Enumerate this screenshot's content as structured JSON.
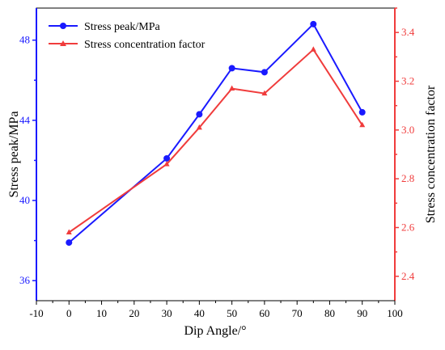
{
  "chart_data": {
    "type": "line",
    "xlabel": "Dip Angle/°",
    "x_ticks": [
      "-10",
      "0",
      "10",
      "20",
      "30",
      "40",
      "50",
      "60",
      "70",
      "80",
      "90",
      "100"
    ],
    "xlim": [
      -10,
      100
    ],
    "left_axis": {
      "label": "Stress peak/MPa",
      "ticks": [
        "36",
        "40",
        "44",
        "48"
      ],
      "ylim": [
        35.0,
        49.6
      ],
      "color": "#1a1aff"
    },
    "right_axis": {
      "label": "Stress concentration factor",
      "ticks": [
        "2.4",
        "2.6",
        "2.8",
        "3.0",
        "3.2",
        "3.4"
      ],
      "ylim": [
        2.3,
        3.5
      ],
      "color": "#f03c3c"
    },
    "series": [
      {
        "name": "Stress peak/MPa",
        "axis": "left",
        "marker": "circle",
        "color": "#1a1aff",
        "x": [
          0,
          30,
          40,
          50,
          60,
          75,
          90
        ],
        "values": [
          37.9,
          42.1,
          44.3,
          46.6,
          46.4,
          48.8,
          44.4
        ]
      },
      {
        "name": "Stress concentration factor",
        "axis": "right",
        "marker": "triangle",
        "color": "#f03c3c",
        "x": [
          0,
          30,
          40,
          50,
          60,
          75,
          90
        ],
        "values": [
          2.58,
          2.86,
          3.01,
          3.17,
          3.15,
          3.33,
          3.02
        ]
      }
    ],
    "legend": {
      "placement": "top-left"
    },
    "grid": false
  }
}
